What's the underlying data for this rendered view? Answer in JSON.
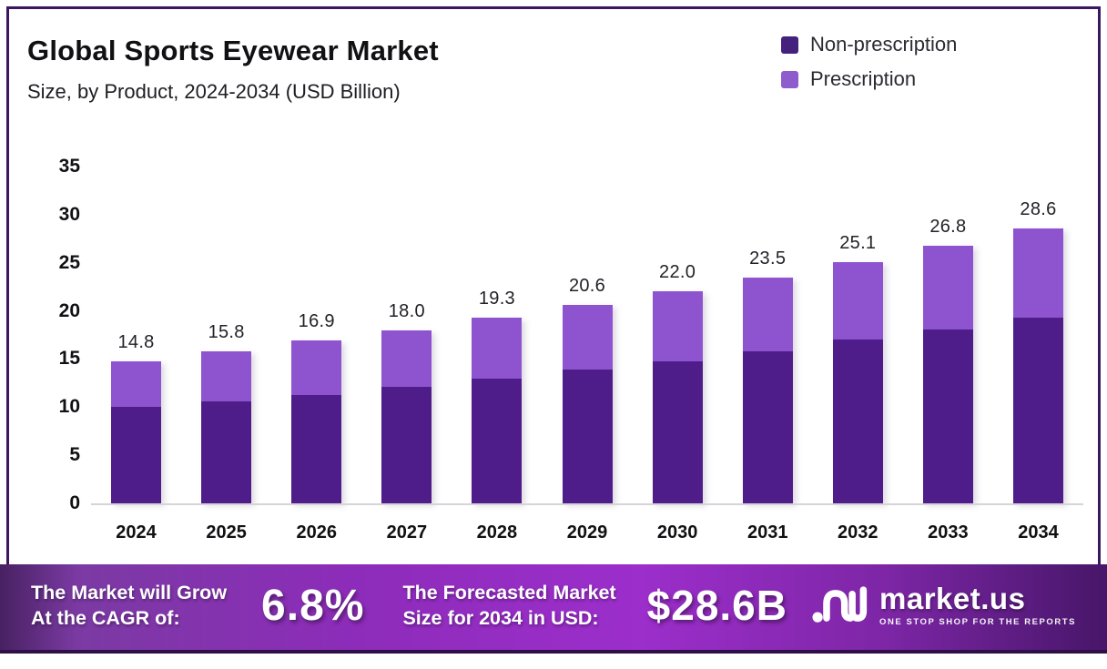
{
  "header": {
    "title": "Global Sports Eyewear Market",
    "subtitle": "Size, by Product, 2024-2034 (USD Billion)"
  },
  "legend": [
    {
      "label": "Non-prescription",
      "color": "#45217e"
    },
    {
      "label": "Prescription",
      "color": "#8f5ccd"
    }
  ],
  "colors": {
    "non_prescription_bar": "#4e1d89",
    "prescription_bar": "#8e54cf",
    "frame_border": "#3a1763",
    "axis_line": "#d8d3d8",
    "banner_dark_edge": "#471669",
    "banner_bright_mid": "#9c2ecb"
  },
  "chart_data": {
    "type": "bar",
    "stacked": true,
    "title": "Global Sports Eyewear Market",
    "subtitle": "Size, by Product, 2024-2034 (USD Billion)",
    "xlabel": "",
    "ylabel": "",
    "ylim": [
      0,
      35
    ],
    "y_ticks": [
      35,
      30,
      25,
      20,
      15,
      10,
      5,
      0
    ],
    "grid": false,
    "legend_position": "top-right",
    "categories": [
      "2024",
      "2025",
      "2026",
      "2027",
      "2028",
      "2029",
      "2030",
      "2031",
      "2032",
      "2033",
      "2034"
    ],
    "series": [
      {
        "name": "Non-prescription",
        "color": "#4e1d89",
        "values": [
          10.0,
          10.6,
          11.3,
          12.1,
          13.0,
          13.9,
          14.8,
          15.8,
          17.0,
          18.1,
          19.3
        ]
      },
      {
        "name": "Prescription",
        "color": "#8e54cf",
        "values": [
          4.8,
          5.2,
          5.6,
          5.9,
          6.3,
          6.7,
          7.2,
          7.7,
          8.1,
          8.7,
          9.3
        ]
      }
    ],
    "totals": [
      14.8,
      15.8,
      16.9,
      18.0,
      19.3,
      20.6,
      22.0,
      23.5,
      25.1,
      26.8,
      28.6
    ],
    "total_labels": [
      "14.8",
      "15.8",
      "16.9",
      "18.0",
      "19.3",
      "20.6",
      "22.0",
      "23.5",
      "25.1",
      "26.8",
      "28.6"
    ]
  },
  "footer": {
    "cagr_label_line1": "The Market will Grow",
    "cagr_label_line2": "At the CAGR of:",
    "cagr_value": "6.8%",
    "forecast_label_line1": "The Forecasted Market",
    "forecast_label_line2": "Size for 2034 in USD:",
    "forecast_value": "$28.6B",
    "brand_name": "market.us",
    "brand_tagline": "ONE STOP SHOP FOR THE REPORTS"
  }
}
